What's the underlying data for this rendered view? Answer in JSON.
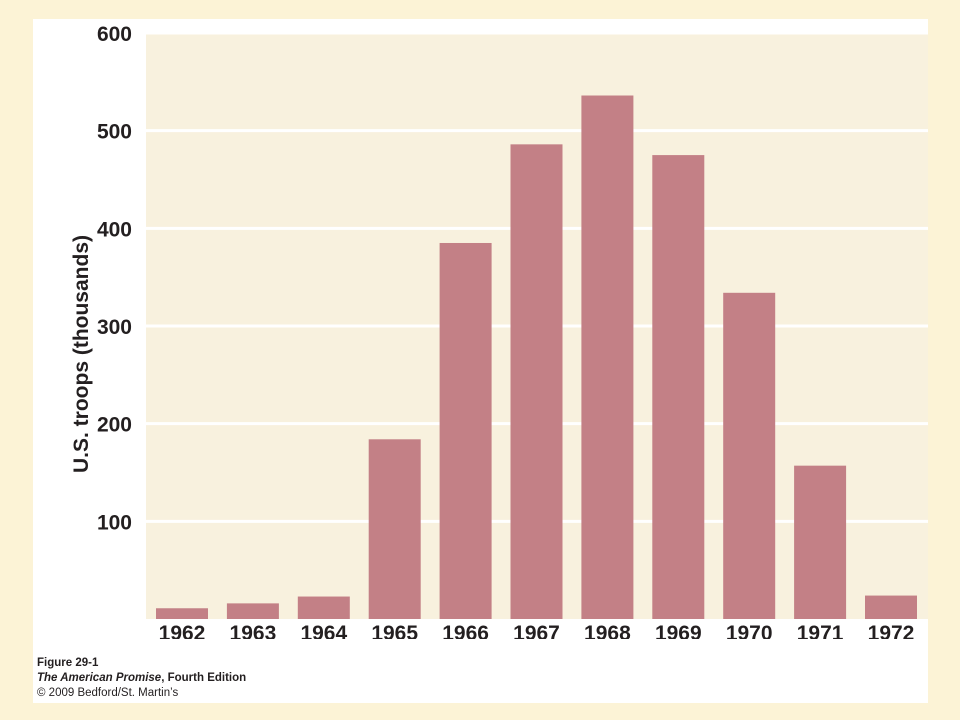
{
  "chart_data": {
    "type": "bar",
    "categories": [
      "1962",
      "1963",
      "1964",
      "1965",
      "1966",
      "1967",
      "1968",
      "1969",
      "1970",
      "1971",
      "1972"
    ],
    "values": [
      11,
      16,
      23,
      184,
      385,
      486,
      536,
      475,
      334,
      157,
      24
    ],
    "ylabel": "U.S. troops (thousands)",
    "xlabel": "",
    "ylim": [
      0,
      600
    ],
    "yticks": [
      100,
      200,
      300,
      400,
      500,
      600
    ],
    "grid": true,
    "colors": {
      "bar": "#c38086",
      "plot_background": "#f8f1de",
      "gridline": "#ffffff",
      "page_background": "#fcf3d6"
    }
  },
  "caption": {
    "figure": "Figure 29-1",
    "book_title": "The American Promise",
    "book_edition": ", Fourth Edition",
    "copyright": "© 2009 Bedford/St. Martin’s"
  }
}
